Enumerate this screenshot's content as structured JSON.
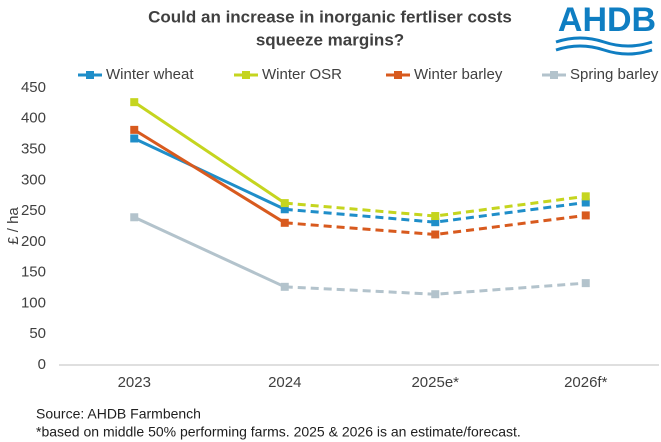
{
  "chart_data": {
    "type": "line",
    "title": "Could an increase in inorganic fertliser costs",
    "title_line2": "squeeze margins?",
    "logo": "AHDB",
    "y_label": "£ / ha",
    "categories": [
      "2023",
      "2024",
      "2025e*",
      "2026f*"
    ],
    "dashed_from_category": "2024",
    "series": [
      {
        "name": "Winter wheat",
        "color": "#1f8ec9",
        "values": [
          368,
          253,
          232,
          264
        ]
      },
      {
        "name": "Winter OSR",
        "color": "#c5d51f",
        "values": [
          427,
          263,
          242,
          274
        ]
      },
      {
        "name": "Winter barley",
        "color": "#d85a1e",
        "values": [
          382,
          231,
          212,
          243
        ]
      },
      {
        "name": "Spring barley",
        "color": "#b3c3cc",
        "values": [
          240,
          127,
          115,
          133
        ]
      }
    ],
    "ylim": [
      0,
      450
    ],
    "yticks": [
      0,
      50,
      100,
      150,
      200,
      250,
      300,
      350,
      400,
      450
    ],
    "grid": false,
    "legend": "top",
    "footnotes": [
      "Source: AHDB Farmbench",
      "*based on middle 50% performing farms. 2025 & 2026 is an estimate/forecast."
    ]
  }
}
